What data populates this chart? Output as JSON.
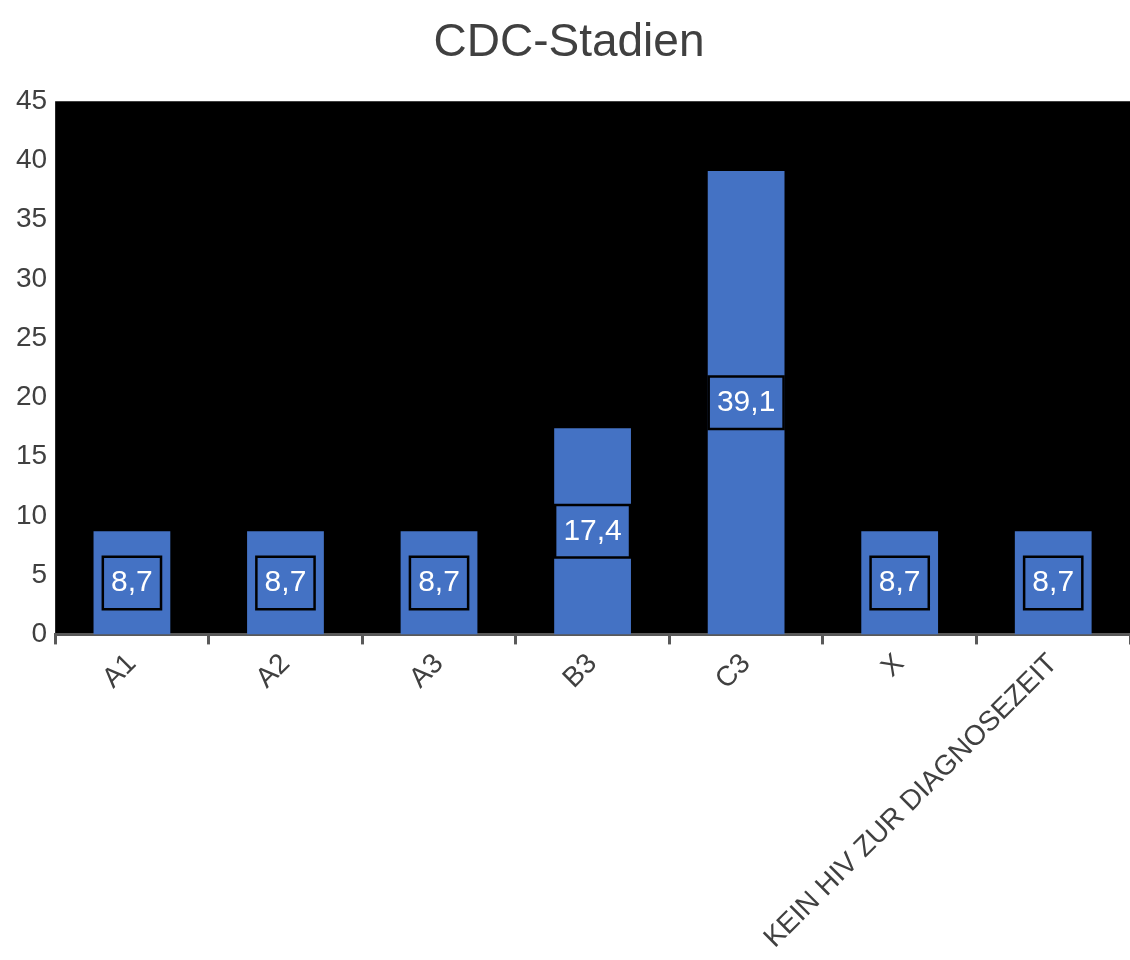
{
  "chart_data": {
    "type": "bar",
    "title": "CDC-Stadien",
    "categories": [
      "A1",
      "A2",
      "A3",
      "B3",
      "C3",
      "X",
      "KEIN HIV ZUR DIAGNOSEZEIT"
    ],
    "values": [
      8.7,
      8.7,
      8.7,
      17.4,
      39.1,
      8.7,
      8.7
    ],
    "value_labels": [
      "8,7",
      "8,7",
      "8,7",
      "17,4",
      "39,1",
      "8,7",
      "8,7"
    ],
    "color": "#4472c4",
    "ylim": [
      0,
      45
    ],
    "yticks": [
      0,
      5,
      10,
      15,
      20,
      25,
      30,
      35,
      40,
      45
    ],
    "grid": false,
    "legend": false
  }
}
